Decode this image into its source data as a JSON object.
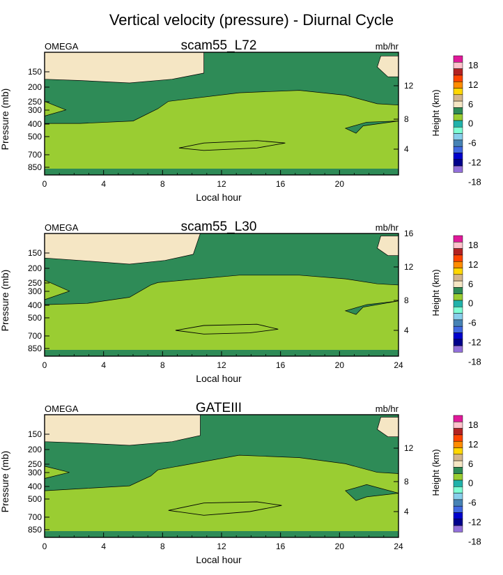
{
  "figure": {
    "title": "Vertical velocity (pressure) - Diurnal Cycle"
  },
  "colors": {
    "positive_band": "#f5e6c4",
    "near_zero_negative": "#2e8b57",
    "negative": "#9acd32",
    "axis": "#000000"
  },
  "colorbar": {
    "label": "Height (km)",
    "tick_labels": [
      "18",
      "12",
      "6",
      "0",
      "-6",
      "-12",
      "-18"
    ],
    "swatches": [
      "#e0199a",
      "#ffc0cb",
      "#b22222",
      "#ff4500",
      "#ff8c00",
      "#ffd700",
      "#d2b48c",
      "#f5e6c4",
      "#2e8b57",
      "#9acd32",
      "#20b2aa",
      "#7fffd4",
      "#87ceeb",
      "#4682b4",
      "#4169e1",
      "#0000cd",
      "#00008b",
      "#9370db"
    ]
  },
  "chart_data": [
    {
      "type": "heatmap",
      "title": "scam55_L72",
      "variable_label": "OMEGA",
      "units_label": "mb/hr",
      "xlabel": "Local hour",
      "ylabel": "Pressure (mb)",
      "right_label": "Height (km)",
      "x_ticks": [
        0,
        4,
        8,
        12,
        16,
        20
      ],
      "x_tick_labels": [
        "0",
        "4",
        "8",
        "12",
        "16",
        "20"
      ],
      "xlim": [
        0,
        24
      ],
      "y_ticks": [
        150,
        200,
        250,
        300,
        400,
        500,
        700,
        850
      ],
      "y_tick_labels": [
        "150",
        "200",
        "250",
        "300",
        "400",
        "500",
        "700",
        "850"
      ],
      "right_ticks": [
        12,
        8,
        4
      ],
      "right_tick_labels": [
        "12",
        "8",
        "4"
      ]
    },
    {
      "type": "heatmap",
      "title": "scam55_L30",
      "variable_label": "OMEGA",
      "units_label": "mb/hr",
      "xlabel": "Local hour",
      "ylabel": "Pressure (mb)",
      "right_label": "Height (km)",
      "x_ticks": [
        0,
        4,
        8,
        12,
        16,
        20,
        24
      ],
      "x_tick_labels": [
        "0",
        "4",
        "8",
        "12",
        "16",
        "20",
        "24"
      ],
      "xlim": [
        0,
        24
      ],
      "y_ticks": [
        150,
        200,
        250,
        300,
        400,
        500,
        700,
        850
      ],
      "y_tick_labels": [
        "150",
        "200",
        "250",
        "300",
        "400",
        "500",
        "700",
        "850"
      ],
      "right_ticks": [
        16,
        12,
        8,
        4
      ],
      "right_tick_labels": [
        "16",
        "12",
        "8",
        "4"
      ]
    },
    {
      "type": "heatmap",
      "title": "GATEIII",
      "variable_label": "OMEGA",
      "units_label": "mb/hr",
      "xlabel": "Local hour",
      "ylabel": "Pressure (mb)",
      "right_label": "Height (km)",
      "x_ticks": [
        0,
        4,
        8,
        12,
        16,
        20,
        24
      ],
      "x_tick_labels": [
        "0",
        "4",
        "8",
        "12",
        "16",
        "20",
        "24"
      ],
      "xlim": [
        0,
        24
      ],
      "y_ticks": [
        150,
        200,
        250,
        300,
        400,
        500,
        700,
        850
      ],
      "y_tick_labels": [
        "150",
        "200",
        "250",
        "300",
        "400",
        "500",
        "700",
        "850"
      ],
      "right_ticks": [
        12,
        8,
        4
      ],
      "right_tick_labels": [
        "12",
        "8",
        "4"
      ]
    }
  ]
}
